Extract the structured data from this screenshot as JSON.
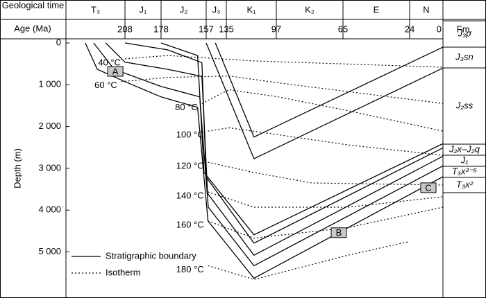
{
  "chart_data": {
    "type": "burial-history",
    "header_time_label": "Geological time",
    "header_age_label": "Age (Ma)",
    "header_fm_label": "Fm.",
    "y_label": "Depth (m)",
    "periods": [
      "T₃",
      "J₁",
      "J₂",
      "J₃",
      "K₁",
      "K₂",
      "E",
      "N"
    ],
    "xticks": [
      208,
      178,
      157,
      135,
      97,
      65,
      24,
      0
    ],
    "ylim": [
      0,
      6070
    ],
    "yticks": [
      0,
      {
        "value": 1000,
        "label": "1 000"
      },
      {
        "value": 2000,
        "label": "2 000"
      },
      {
        "value": 3000,
        "label": "3 000"
      },
      {
        "value": 4000,
        "label": "4 000"
      },
      {
        "value": 5000,
        "label": "5 000"
      }
    ],
    "formations": [
      "J₃p",
      "J₃sn",
      "J₂ss",
      "J₂x–J₂q",
      "J₁",
      "T₃x³⁻⁵",
      "T₃x²"
    ],
    "legend": [
      {
        "label": "Stratigraphic boundary",
        "style": "solid"
      },
      {
        "label": "Isotherm",
        "style": "dotted"
      }
    ],
    "color": "#000000",
    "boundaries": [
      {
        "x": [
          147,
          114,
          0
        ],
        "values": [
          0,
          2250,
          100
        ]
      },
      {
        "x": [
          157,
          114,
          0
        ],
        "values": [
          0,
          2770,
          600
        ]
      },
      {
        "x": [
          178,
          161,
          158,
          114,
          0
        ],
        "values": [
          0,
          300,
          3100,
          4590,
          2410
        ]
      },
      {
        "x": [
          208,
          175,
          159,
          157,
          114,
          0
        ],
        "values": [
          0,
          165,
          470,
          3210,
          4790,
          2510
        ]
      },
      {
        "x": [
          224,
          208,
          175,
          159,
          155.5,
          114,
          0
        ],
        "values": [
          0,
          460,
          630,
          800,
          3600,
          5080,
          2710
        ]
      },
      {
        "x": [
          234,
          217,
          178,
          160,
          154.7,
          114,
          0
        ],
        "values": [
          0,
          630,
          1040,
          1290,
          3930,
          5330,
          2940
        ]
      },
      {
        "x": [
          241,
          231,
          208,
          178,
          161,
          155,
          114,
          0
        ],
        "values": [
          0,
          630,
          925,
          1290,
          1540,
          4260,
          5630,
          3200
        ]
      }
    ],
    "isotherms": [
      {
        "label": "40 °C",
        "x": [
          208,
          175,
          114,
          0
        ],
        "values": [
          380,
          300,
          430,
          580
        ]
      },
      {
        "label": "60 °C",
        "x": [
          211,
          175,
          133,
          96,
          0
        ],
        "values": [
          925,
          825,
          790,
          955,
          1450
        ]
      },
      {
        "label": "80 °C",
        "x": [
          159,
          133,
          96,
          62,
          0
        ],
        "values": [
          1450,
          1120,
          1290,
          1620,
          2110
        ]
      },
      {
        "label": "100 °C",
        "x": [
          155,
          133,
          96,
          62,
          0
        ],
        "values": [
          2110,
          2030,
          2195,
          2440,
          2690
        ]
      },
      {
        "label": "120 °C",
        "x": [
          155,
          114,
          80,
          0
        ],
        "values": [
          2855,
          3100,
          3350,
          3400
        ]
      },
      {
        "label": "140 °C",
        "x": [
          155,
          114,
          62,
          0
        ],
        "values": [
          3565,
          3930,
          3930,
          3680
        ]
      },
      {
        "label": "160 °C",
        "x": [
          155,
          114,
          62,
          0
        ],
        "values": [
          4260,
          4670,
          4420,
          3930
        ]
      },
      {
        "label": "180 °C",
        "x": [
          155,
          114,
          62,
          24
        ],
        "values": [
          5330,
          5660,
          5080,
          4750
        ]
      }
    ],
    "markers": [
      {
        "label": "A",
        "x": 216,
        "y": 680
      },
      {
        "label": "B",
        "x": 67,
        "y": 4540
      },
      {
        "label": "C",
        "x": 10.5,
        "y": 3465
      }
    ]
  }
}
